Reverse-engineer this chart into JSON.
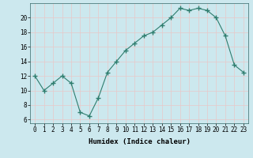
{
  "x": [
    0,
    1,
    2,
    3,
    4,
    5,
    6,
    7,
    8,
    9,
    10,
    11,
    12,
    13,
    14,
    15,
    16,
    17,
    18,
    19,
    20,
    21,
    22,
    23
  ],
  "y": [
    12,
    10,
    11,
    12,
    11,
    7,
    6.5,
    9,
    12.5,
    14,
    15.5,
    16.5,
    17.5,
    18,
    19,
    20,
    21.3,
    21,
    21.3,
    21,
    20,
    17.5,
    13.5,
    12.5
  ],
  "line_color": "#2e7d6e",
  "marker": "+",
  "marker_size": 4,
  "bg_color": "#cce8ee",
  "grid_color": "#e8c8c8",
  "xlabel": "Humidex (Indice chaleur)",
  "xlim": [
    -0.5,
    23.5
  ],
  "ylim": [
    5.5,
    22
  ],
  "yticks": [
    6,
    8,
    10,
    12,
    14,
    16,
    18,
    20
  ],
  "xticks": [
    0,
    1,
    2,
    3,
    4,
    5,
    6,
    7,
    8,
    9,
    10,
    11,
    12,
    13,
    14,
    15,
    16,
    17,
    18,
    19,
    20,
    21,
    22,
    23
  ],
  "label_fontsize": 6.5,
  "tick_fontsize": 5.5
}
